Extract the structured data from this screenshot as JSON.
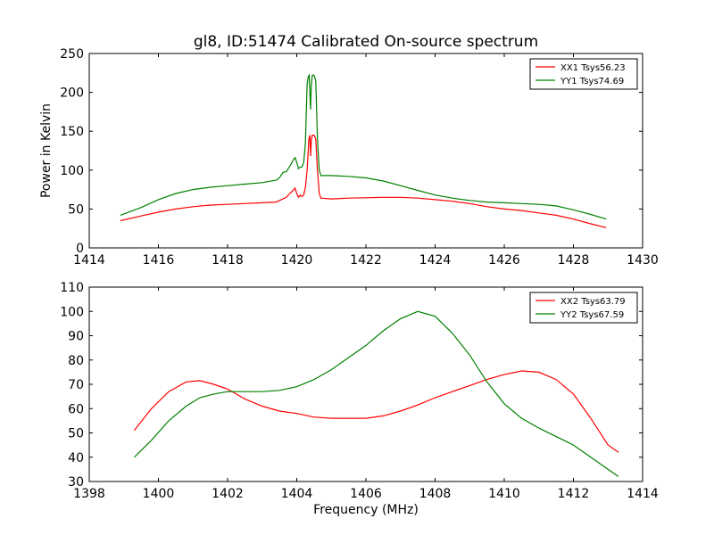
{
  "title": "gl8, ID:51474 Calibrated On-source spectrum",
  "chart_data": [
    {
      "type": "line",
      "title": "gl8, ID:51474 Calibrated On-source spectrum",
      "xlabel": "",
      "ylabel": "Power in Kelvin",
      "xlim": [
        1414,
        1430
      ],
      "ylim": [
        0,
        250
      ],
      "xticks": [
        1414,
        1416,
        1418,
        1420,
        1422,
        1424,
        1426,
        1428,
        1430
      ],
      "yticks": [
        0,
        50,
        100,
        150,
        200,
        250
      ],
      "legend_position": "top-right",
      "grid": false,
      "series": [
        {
          "name": "XX1 Tsys56.23",
          "color": "#ff0000",
          "points": [
            [
              1414.9,
              35
            ],
            [
              1415.5,
              41
            ],
            [
              1416,
              46
            ],
            [
              1416.5,
              50
            ],
            [
              1417,
              53
            ],
            [
              1417.5,
              55
            ],
            [
              1418,
              56
            ],
            [
              1418.5,
              57
            ],
            [
              1419,
              58
            ],
            [
              1419.4,
              59
            ],
            [
              1419.55,
              62
            ],
            [
              1419.7,
              65
            ],
            [
              1419.8,
              70
            ],
            [
              1419.9,
              74
            ],
            [
              1419.95,
              77
            ],
            [
              1420.0,
              70
            ],
            [
              1420.05,
              65
            ],
            [
              1420.1,
              68
            ],
            [
              1420.15,
              66
            ],
            [
              1420.2,
              68
            ],
            [
              1420.25,
              78
            ],
            [
              1420.3,
              100
            ],
            [
              1420.35,
              140
            ],
            [
              1420.38,
              145
            ],
            [
              1420.4,
              118
            ],
            [
              1420.42,
              138
            ],
            [
              1420.45,
              145
            ],
            [
              1420.5,
              145
            ],
            [
              1420.55,
              140
            ],
            [
              1420.6,
              100
            ],
            [
              1420.65,
              70
            ],
            [
              1420.7,
              64
            ],
            [
              1421,
              63
            ],
            [
              1421.5,
              64
            ],
            [
              1422,
              64.5
            ],
            [
              1422.5,
              65
            ],
            [
              1423,
              65
            ],
            [
              1423.5,
              64
            ],
            [
              1424,
              62
            ],
            [
              1424.5,
              60
            ],
            [
              1425,
              57
            ],
            [
              1425.5,
              53
            ],
            [
              1426,
              50
            ],
            [
              1426.5,
              48
            ],
            [
              1427,
              45
            ],
            [
              1427.5,
              42
            ],
            [
              1428,
              37
            ],
            [
              1428.5,
              31
            ],
            [
              1428.95,
              26
            ]
          ]
        },
        {
          "name": "YY1 Tsys74.69",
          "color": "#008000",
          "points": [
            [
              1414.9,
              42
            ],
            [
              1415.5,
              52
            ],
            [
              1416,
              62
            ],
            [
              1416.5,
              70
            ],
            [
              1417,
              75
            ],
            [
              1417.5,
              78
            ],
            [
              1418,
              80
            ],
            [
              1418.5,
              82
            ],
            [
              1419,
              84
            ],
            [
              1419.4,
              87
            ],
            [
              1419.5,
              90
            ],
            [
              1419.6,
              97
            ],
            [
              1419.7,
              98
            ],
            [
              1419.8,
              105
            ],
            [
              1419.9,
              113
            ],
            [
              1419.95,
              116
            ],
            [
              1420.0,
              110
            ],
            [
              1420.05,
              102
            ],
            [
              1420.1,
              104
            ],
            [
              1420.15,
              104
            ],
            [
              1420.2,
              110
            ],
            [
              1420.25,
              135
            ],
            [
              1420.3,
              210
            ],
            [
              1420.33,
              220
            ],
            [
              1420.36,
              222
            ],
            [
              1420.38,
              200
            ],
            [
              1420.4,
              178
            ],
            [
              1420.42,
              210
            ],
            [
              1420.45,
              222
            ],
            [
              1420.5,
              222
            ],
            [
              1420.55,
              215
            ],
            [
              1420.6,
              140
            ],
            [
              1420.65,
              100
            ],
            [
              1420.7,
              93
            ],
            [
              1421,
              93
            ],
            [
              1421.5,
              92
            ],
            [
              1422,
              90
            ],
            [
              1422.5,
              86
            ],
            [
              1423,
              80
            ],
            [
              1423.5,
              74
            ],
            [
              1424,
              68
            ],
            [
              1424.5,
              64
            ],
            [
              1425,
              61
            ],
            [
              1425.5,
              59
            ],
            [
              1426,
              58
            ],
            [
              1426.5,
              57
            ],
            [
              1427,
              56
            ],
            [
              1427.5,
              54
            ],
            [
              1428,
              49
            ],
            [
              1428.5,
              43
            ],
            [
              1428.95,
              37
            ]
          ]
        }
      ]
    },
    {
      "type": "line",
      "title": "",
      "xlabel": "Frequency (MHz)",
      "ylabel": "",
      "xlim": [
        1398,
        1414
      ],
      "ylim": [
        30,
        110
      ],
      "xticks": [
        1398,
        1400,
        1402,
        1404,
        1406,
        1408,
        1410,
        1412,
        1414
      ],
      "yticks": [
        30,
        40,
        50,
        60,
        70,
        80,
        90,
        100,
        110
      ],
      "legend_position": "top-right",
      "grid": false,
      "series": [
        {
          "name": "XX2 Tsys63.79",
          "color": "#ff0000",
          "points": [
            [
              1399.3,
              51
            ],
            [
              1399.8,
              60
            ],
            [
              1400.3,
              67
            ],
            [
              1400.8,
              71
            ],
            [
              1401.2,
              71.5
            ],
            [
              1401.6,
              70
            ],
            [
              1402,
              68
            ],
            [
              1402.5,
              64
            ],
            [
              1403,
              61
            ],
            [
              1403.5,
              59
            ],
            [
              1404,
              58
            ],
            [
              1404.5,
              56.5
            ],
            [
              1405,
              56
            ],
            [
              1405.5,
              56
            ],
            [
              1406,
              56
            ],
            [
              1406.5,
              57
            ],
            [
              1407,
              59
            ],
            [
              1407.5,
              61.5
            ],
            [
              1408,
              64.5
            ],
            [
              1408.5,
              67
            ],
            [
              1409,
              69.5
            ],
            [
              1409.5,
              72
            ],
            [
              1410,
              74
            ],
            [
              1410.5,
              75.5
            ],
            [
              1411,
              75
            ],
            [
              1411.5,
              72
            ],
            [
              1412,
              66
            ],
            [
              1412.5,
              56
            ],
            [
              1413,
              45
            ],
            [
              1413.3,
              42
            ]
          ]
        },
        {
          "name": "YY2 Tsys67.59",
          "color": "#008000",
          "points": [
            [
              1399.3,
              40
            ],
            [
              1399.8,
              47
            ],
            [
              1400.3,
              55
            ],
            [
              1400.8,
              61
            ],
            [
              1401.2,
              64.5
            ],
            [
              1401.6,
              66
            ],
            [
              1402,
              67
            ],
            [
              1402.5,
              67
            ],
            [
              1403,
              67
            ],
            [
              1403.5,
              67.5
            ],
            [
              1404,
              69
            ],
            [
              1404.5,
              72
            ],
            [
              1405,
              76
            ],
            [
              1405.5,
              81
            ],
            [
              1406,
              86
            ],
            [
              1406.5,
              92
            ],
            [
              1407,
              97
            ],
            [
              1407.5,
              100
            ],
            [
              1408,
              98
            ],
            [
              1408.5,
              91
            ],
            [
              1409,
              82
            ],
            [
              1409.5,
              71
            ],
            [
              1410,
              62
            ],
            [
              1410.5,
              56
            ],
            [
              1411,
              52
            ],
            [
              1411.5,
              48.5
            ],
            [
              1412,
              45
            ],
            [
              1412.5,
              40
            ],
            [
              1413,
              35
            ],
            [
              1413.3,
              32
            ]
          ]
        }
      ]
    }
  ]
}
